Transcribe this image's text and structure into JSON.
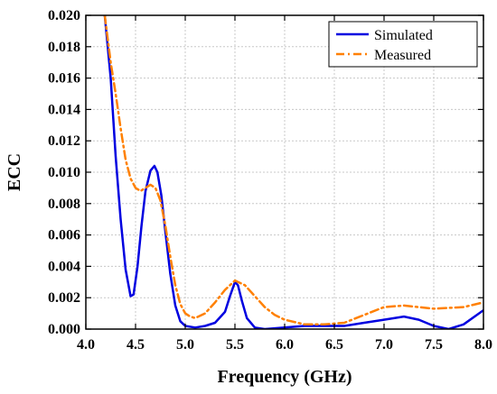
{
  "chart_data": {
    "type": "line",
    "title": "",
    "xlabel": "Frequency (GHz)",
    "ylabel": "ECC",
    "xlim": [
      4.0,
      8.0
    ],
    "ylim": [
      0.0,
      0.02
    ],
    "xticks": [
      "4.0",
      "4.5",
      "5.0",
      "5.5",
      "6.0",
      "6.5",
      "7.0",
      "7.5",
      "8.0"
    ],
    "yticks": [
      "0.000",
      "0.002",
      "0.004",
      "0.006",
      "0.008",
      "0.010",
      "0.012",
      "0.014",
      "0.016",
      "0.018",
      "0.020"
    ],
    "grid": true,
    "legend_position": "top-right",
    "series": [
      {
        "name": "Simulated",
        "color": "#0000e0",
        "style": "solid",
        "points": [
          [
            4.19,
            0.02
          ],
          [
            4.25,
            0.016
          ],
          [
            4.3,
            0.011
          ],
          [
            4.35,
            0.007
          ],
          [
            4.4,
            0.0038
          ],
          [
            4.45,
            0.0021
          ],
          [
            4.48,
            0.0022
          ],
          [
            4.52,
            0.004
          ],
          [
            4.56,
            0.0066
          ],
          [
            4.6,
            0.0088
          ],
          [
            4.65,
            0.0101
          ],
          [
            4.69,
            0.0104
          ],
          [
            4.72,
            0.01
          ],
          [
            4.76,
            0.0085
          ],
          [
            4.8,
            0.0062
          ],
          [
            4.85,
            0.0035
          ],
          [
            4.9,
            0.0015
          ],
          [
            4.95,
            0.0005
          ],
          [
            5.0,
            0.0002
          ],
          [
            5.1,
            0.0001
          ],
          [
            5.2,
            0.0002
          ],
          [
            5.3,
            0.0004
          ],
          [
            5.4,
            0.0011
          ],
          [
            5.45,
            0.0021
          ],
          [
            5.5,
            0.003
          ],
          [
            5.53,
            0.0028
          ],
          [
            5.57,
            0.0018
          ],
          [
            5.62,
            0.0007
          ],
          [
            5.7,
            0.0001
          ],
          [
            5.8,
            0.0
          ],
          [
            6.0,
            0.0001
          ],
          [
            6.2,
            0.0002
          ],
          [
            6.4,
            0.0002
          ],
          [
            6.6,
            0.0002
          ],
          [
            6.8,
            0.0004
          ],
          [
            7.0,
            0.0006
          ],
          [
            7.2,
            0.0008
          ],
          [
            7.35,
            0.0006
          ],
          [
            7.5,
            0.0002
          ],
          [
            7.65,
            0.0
          ],
          [
            7.8,
            0.0003
          ],
          [
            8.0,
            0.0012
          ]
        ]
      },
      {
        "name": "Measured",
        "color": "#ff8000",
        "style": "dash-dot",
        "points": [
          [
            4.19,
            0.02
          ],
          [
            4.25,
            0.017
          ],
          [
            4.3,
            0.015
          ],
          [
            4.35,
            0.0128
          ],
          [
            4.4,
            0.0108
          ],
          [
            4.45,
            0.0096
          ],
          [
            4.5,
            0.009
          ],
          [
            4.55,
            0.0088
          ],
          [
            4.6,
            0.009
          ],
          [
            4.65,
            0.0092
          ],
          [
            4.7,
            0.009
          ],
          [
            4.75,
            0.0082
          ],
          [
            4.8,
            0.0066
          ],
          [
            4.85,
            0.0046
          ],
          [
            4.9,
            0.0028
          ],
          [
            4.95,
            0.0016
          ],
          [
            5.0,
            0.001
          ],
          [
            5.05,
            0.0008
          ],
          [
            5.1,
            0.0007
          ],
          [
            5.2,
            0.001
          ],
          [
            5.3,
            0.0017
          ],
          [
            5.4,
            0.0025
          ],
          [
            5.5,
            0.0031
          ],
          [
            5.6,
            0.0028
          ],
          [
            5.7,
            0.0021
          ],
          [
            5.8,
            0.0014
          ],
          [
            5.9,
            0.0009
          ],
          [
            6.0,
            0.0006
          ],
          [
            6.2,
            0.0003
          ],
          [
            6.4,
            0.0003
          ],
          [
            6.6,
            0.0004
          ],
          [
            6.8,
            0.0009
          ],
          [
            7.0,
            0.0014
          ],
          [
            7.2,
            0.0015
          ],
          [
            7.5,
            0.0013
          ],
          [
            7.8,
            0.0014
          ],
          [
            8.0,
            0.0017
          ]
        ]
      }
    ]
  }
}
